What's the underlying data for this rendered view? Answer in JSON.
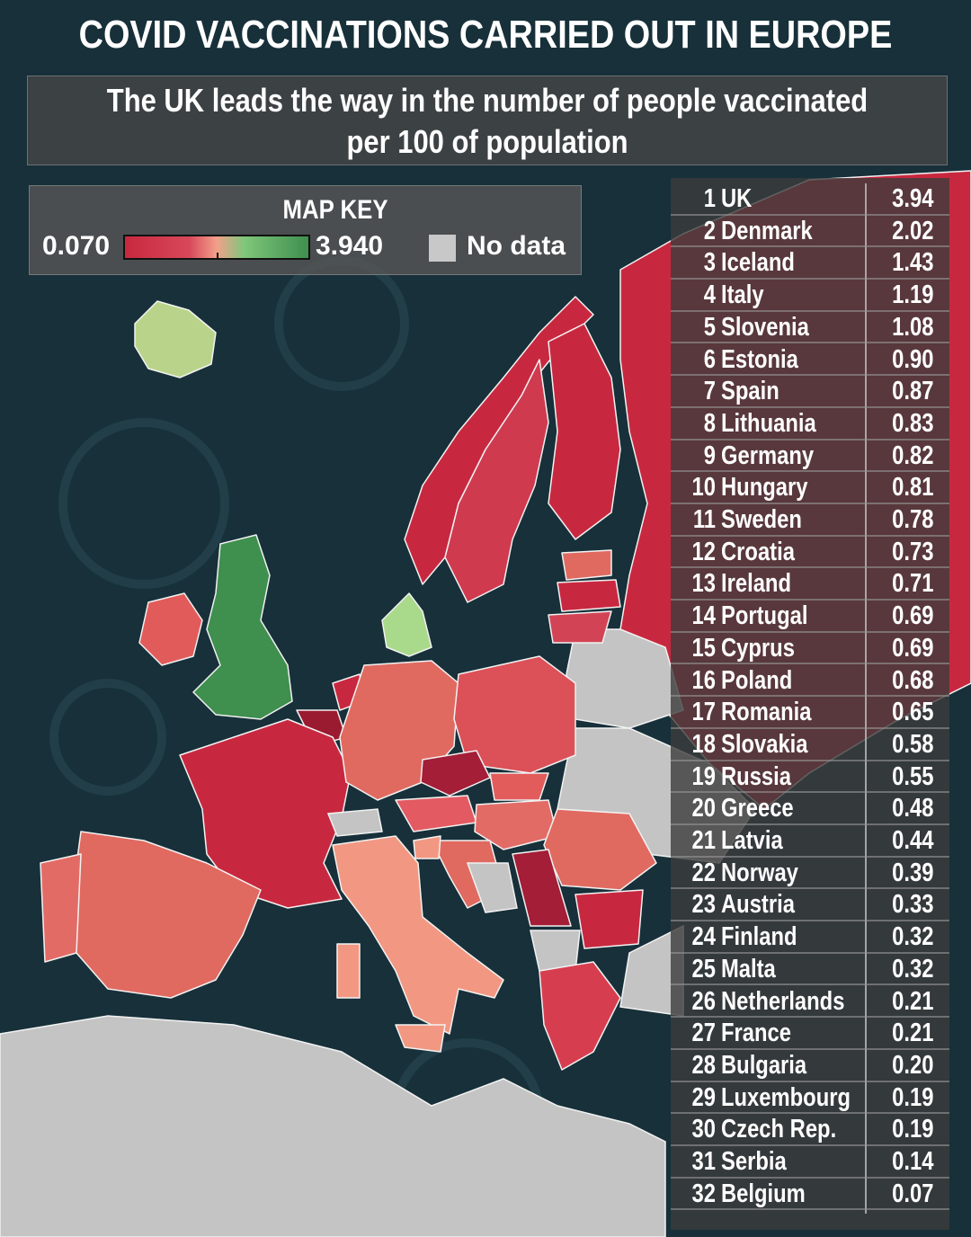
{
  "title": "COVID VACCINATIONS CARRIED OUT IN EUROPE",
  "subtitle_line1": "The UK leads the way in the number of people vaccinated",
  "subtitle_line2": "per 100 of population",
  "map_key": {
    "title": "MAP KEY",
    "min_label": "0.070",
    "max_label": "3.940",
    "no_data_label": "No data",
    "no_data_color": "#c4c4c4",
    "scale_colors": [
      "#c8283f",
      "#d8485a",
      "#f2a08a",
      "#7fc77a",
      "#3f8f4e"
    ]
  },
  "colors": {
    "sea": "#17303a",
    "table_bg": "#3c3c3c",
    "text": "#ffffff"
  },
  "rankings": [
    {
      "rank": "1",
      "country": "UK",
      "value": "3.94"
    },
    {
      "rank": "2",
      "country": "Denmark",
      "value": "2.02"
    },
    {
      "rank": "3",
      "country": "Iceland",
      "value": "1.43"
    },
    {
      "rank": "4",
      "country": "Italy",
      "value": "1.19"
    },
    {
      "rank": "5",
      "country": "Slovenia",
      "value": "1.08"
    },
    {
      "rank": "6",
      "country": "Estonia",
      "value": "0.90"
    },
    {
      "rank": "7",
      "country": "Spain",
      "value": "0.87"
    },
    {
      "rank": "8",
      "country": "Lithuania",
      "value": "0.83"
    },
    {
      "rank": "9",
      "country": "Germany",
      "value": "0.82"
    },
    {
      "rank": "10",
      "country": "Hungary",
      "value": "0.81"
    },
    {
      "rank": "11",
      "country": "Sweden",
      "value": "0.78"
    },
    {
      "rank": "12",
      "country": "Croatia",
      "value": "0.73"
    },
    {
      "rank": "13",
      "country": "Ireland",
      "value": "0.71"
    },
    {
      "rank": "14",
      "country": "Portugal",
      "value": "0.69"
    },
    {
      "rank": "15",
      "country": "Cyprus",
      "value": "0.69"
    },
    {
      "rank": "16",
      "country": "Poland",
      "value": "0.68"
    },
    {
      "rank": "17",
      "country": "Romania",
      "value": "0.65"
    },
    {
      "rank": "18",
      "country": "Slovakia",
      "value": "0.58"
    },
    {
      "rank": "19",
      "country": "Russia",
      "value": "0.55"
    },
    {
      "rank": "20",
      "country": "Greece",
      "value": "0.48"
    },
    {
      "rank": "21",
      "country": "Latvia",
      "value": "0.44"
    },
    {
      "rank": "22",
      "country": "Norway",
      "value": "0.39"
    },
    {
      "rank": "23",
      "country": "Austria",
      "value": "0.33"
    },
    {
      "rank": "24",
      "country": "Finland",
      "value": "0.32"
    },
    {
      "rank": "25",
      "country": "Malta",
      "value": "0.32"
    },
    {
      "rank": "26",
      "country": "Netherlands",
      "value": "0.21"
    },
    {
      "rank": "27",
      "country": "France",
      "value": "0.21"
    },
    {
      "rank": "28",
      "country": "Bulgaria",
      "value": "0.20"
    },
    {
      "rank": "29",
      "country": "Luxembourg",
      "value": "0.19"
    },
    {
      "rank": "30",
      "country": "Czech Rep.",
      "value": "0.19"
    },
    {
      "rank": "31",
      "country": "Serbia",
      "value": "0.14"
    },
    {
      "rank": "32",
      "country": "Belgium",
      "value": "0.07"
    }
  ]
}
